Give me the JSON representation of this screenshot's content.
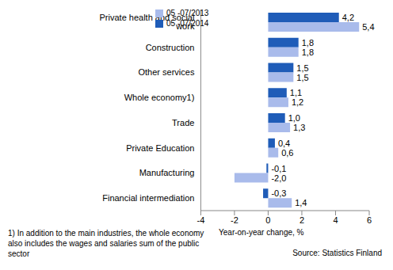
{
  "chart_data": {
    "type": "bar",
    "orientation": "horizontal",
    "categories": [
      "Private health and social work",
      "Construction",
      "Other services",
      "Whole economy1)",
      "Trade",
      "Private Education",
      "Manufacturing",
      "Financial intermediation"
    ],
    "series": [
      {
        "name": "05 -07/2014",
        "color": "#1f5cb8",
        "values": [
          4.2,
          1.8,
          1.5,
          1.1,
          1.0,
          0.4,
          -0.1,
          -0.3
        ],
        "value_labels": [
          "4,2",
          "1,8",
          "1,5",
          "1,1",
          "1,0",
          "0,4",
          "-0,1",
          "-0,3"
        ]
      },
      {
        "name": "05 -07/2013",
        "color": "#a9bbeb",
        "values": [
          5.4,
          1.8,
          1.5,
          1.2,
          1.3,
          0.6,
          -2.0,
          1.4
        ],
        "value_labels": [
          "5,4",
          "1,8",
          "1,5",
          "1,2",
          "1,3",
          "0,6",
          "-2,0",
          "1,4"
        ]
      }
    ],
    "x_label": "Year-on-year change, %",
    "xlim": [
      -4,
      6
    ],
    "xticks": [
      -4,
      -2,
      0,
      2,
      4,
      6
    ],
    "data_labels": true,
    "legend": "upper left",
    "grid": false,
    "footnote": "1) In addition to the main industries, the whole economy also includes the wages and salaries sum of the public sector",
    "source": "Source: Statistics Finland"
  }
}
